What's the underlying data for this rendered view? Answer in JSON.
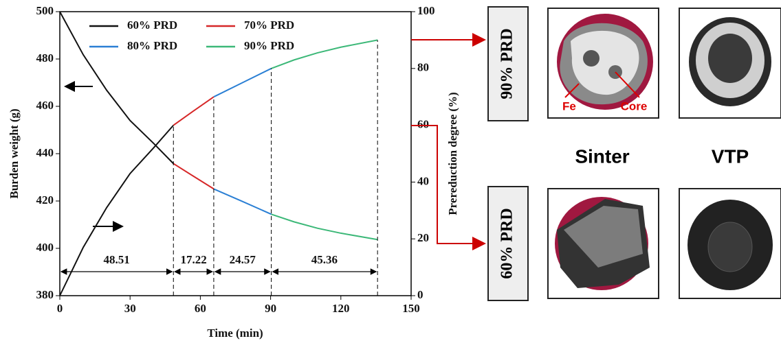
{
  "chart_data": {
    "type": "line",
    "xlabel": "Time (min)",
    "ylabel": "Burden weight (g)",
    "y2label": "Prereduction degree (%)",
    "xlim": [
      0,
      150
    ],
    "xticks": [
      0,
      30,
      60,
      90,
      120,
      150
    ],
    "ylim": [
      380,
      500
    ],
    "yticks": [
      380,
      400,
      420,
      440,
      460,
      480,
      500
    ],
    "y2lim": [
      0,
      100
    ],
    "y2ticks": [
      0,
      20,
      40,
      60,
      80,
      100
    ],
    "series": [
      {
        "name": "60% PRD",
        "color": "#111111",
        "x": [
          0,
          10,
          20,
          30,
          40,
          48.51
        ],
        "values": [
          500,
          481.8,
          466.8,
          454,
          444.4,
          435.8
        ],
        "y2_values": [
          0,
          17,
          31,
          43,
          52,
          60
        ]
      },
      {
        "name": "70% PRD",
        "color": "#d62728",
        "x": [
          48.51,
          57,
          65.73
        ],
        "values": [
          435.8,
          430.5,
          425.1
        ],
        "y2_values": [
          60,
          65,
          70
        ]
      },
      {
        "name": "80% PRD",
        "color": "#2a7fd4",
        "x": [
          65.73,
          78,
          90.3
        ],
        "values": [
          425.1,
          419.8,
          414.4
        ],
        "y2_values": [
          70,
          75,
          80
        ]
      },
      {
        "name": "90% PRD",
        "color": "#3cb878",
        "x": [
          90.3,
          100,
          110,
          120,
          135.66
        ],
        "values": [
          414.4,
          411.2,
          408.5,
          406.4,
          403.7
        ],
        "y2_values": [
          80,
          83,
          85.5,
          87.5,
          90
        ]
      }
    ],
    "intervals": [
      48.51,
      17.22,
      24.57,
      45.36
    ]
  },
  "images": {
    "top_label": "90% PRD",
    "bottom_label": "60% PRD",
    "col1": "Sinter",
    "col2": "VTP",
    "fe": "Fe",
    "core": "Core"
  }
}
